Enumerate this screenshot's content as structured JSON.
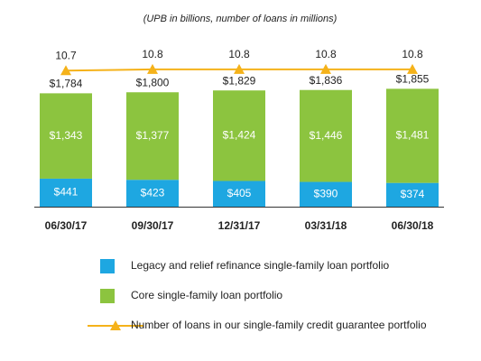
{
  "chart_data": {
    "type": "stacked_bar_line",
    "subtitle": "(UPB in billions, number of loans in millions)",
    "categories": [
      "06/30/17",
      "09/30/17",
      "12/31/17",
      "03/31/18",
      "06/30/18"
    ],
    "series": [
      {
        "name": "Legacy and relief refinance single-family loan portfolio",
        "color": "#1ea7e1",
        "type": "bar",
        "values": [
          441,
          423,
          405,
          390,
          374
        ],
        "value_labels": [
          "$441",
          "$423",
          "$405",
          "$390",
          "$374"
        ]
      },
      {
        "name": "Core single-family loan portfolio",
        "color": "#8cc43f",
        "type": "bar",
        "values": [
          1343,
          1377,
          1424,
          1446,
          1481
        ],
        "value_labels": [
          "$1,343",
          "$1,377",
          "$1,424",
          "$1,446",
          "$1,481"
        ]
      },
      {
        "name": "Number of loans in our single-family credit guarantee portfolio",
        "color": "#f5b21a",
        "type": "line",
        "axis": "y2",
        "values": [
          10.7,
          10.8,
          10.8,
          10.8,
          10.8
        ]
      }
    ],
    "totals": {
      "values": [
        1784,
        1800,
        1829,
        1836,
        1855
      ],
      "value_labels": [
        "$1,784",
        "$1,800",
        "$1,829",
        "$1,836",
        "$1,855"
      ]
    },
    "ylim": [
      0,
      2400
    ],
    "y2lim": [
      0,
      12
    ]
  }
}
